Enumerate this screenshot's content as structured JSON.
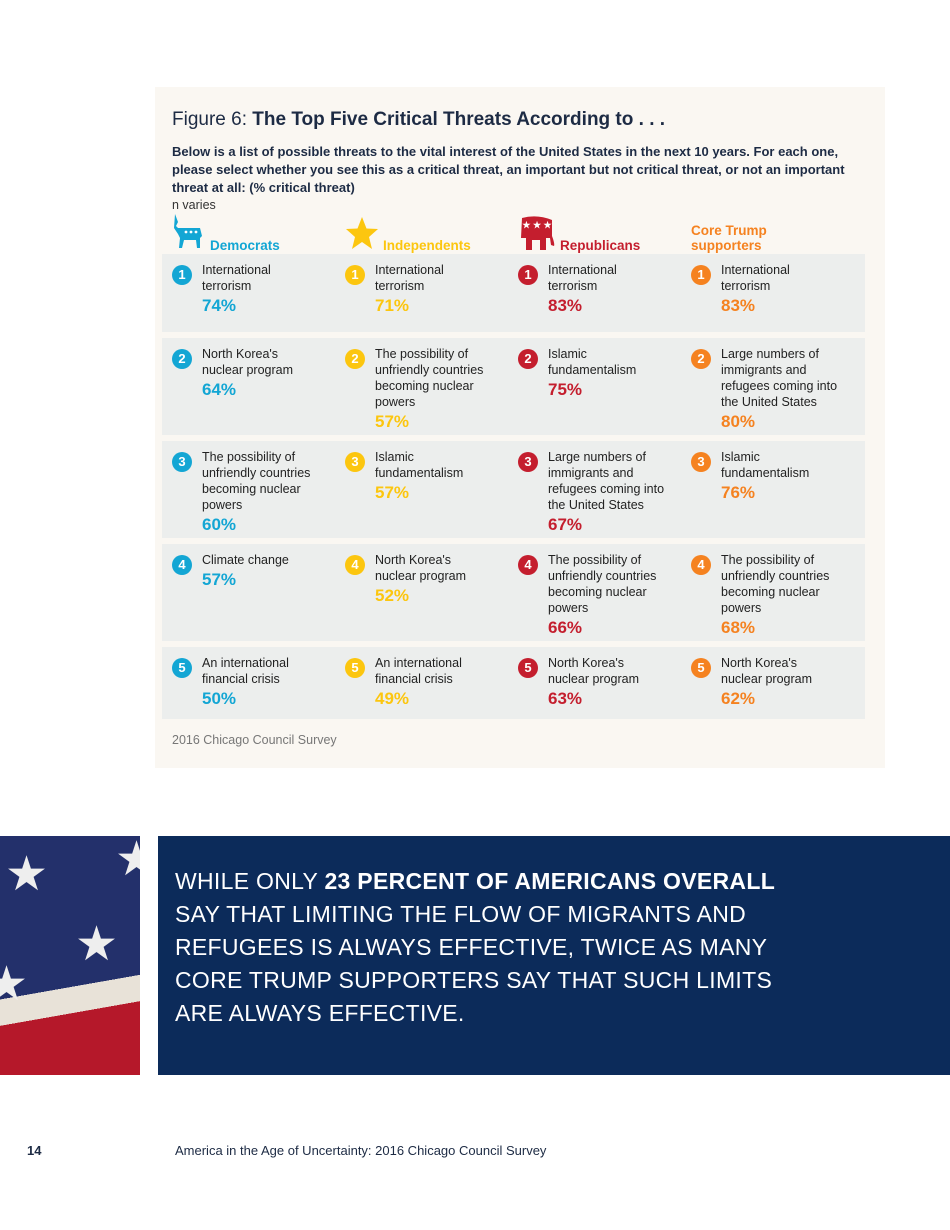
{
  "figure": {
    "title_prefix": "Figure 6: ",
    "title_bold": "The Top Five Critical Threats According to . . .",
    "description": "Below is a list of possible threats to the vital interest of the United States in the next 10 years. For each one, please select whether you see this as a critical threat, an important but not critical threat, or not an important threat at all: (% critical threat)",
    "n_note": "n varies",
    "source": "2016 Chicago Council Survey",
    "columns": [
      {
        "header": "Democrats",
        "icon": "donkey-icon",
        "color": "#13a6d4",
        "items": [
          {
            "rank": "1",
            "label": "International terrorism",
            "pct": "74%"
          },
          {
            "rank": "2",
            "label": "North Korea's nuclear program",
            "pct": "64%"
          },
          {
            "rank": "3",
            "label": "The possibility of unfriendly countries becoming nuclear powers",
            "pct": "60%"
          },
          {
            "rank": "4",
            "label": "Climate change",
            "pct": "57%"
          },
          {
            "rank": "5",
            "label": "An international financial crisis",
            "pct": "50%"
          }
        ]
      },
      {
        "header": "Independents",
        "icon": "star-icon",
        "color": "#fcc60f",
        "items": [
          {
            "rank": "1",
            "label": "International terrorism",
            "pct": "71%"
          },
          {
            "rank": "2",
            "label": "The possibility of unfriendly countries becoming nuclear powers",
            "pct": "57%"
          },
          {
            "rank": "3",
            "label": "Islamic fundamentalism",
            "pct": "57%"
          },
          {
            "rank": "4",
            "label": "North Korea's nuclear program",
            "pct": "52%"
          },
          {
            "rank": "5",
            "label": "An international financial crisis",
            "pct": "49%"
          }
        ]
      },
      {
        "header": "Republicans",
        "icon": "elephant-icon",
        "color": "#c41e2e",
        "items": [
          {
            "rank": "1",
            "label": "International terrorism",
            "pct": "83%"
          },
          {
            "rank": "2",
            "label": "Islamic fundamentalism",
            "pct": "75%"
          },
          {
            "rank": "3",
            "label": "Large numbers of immigrants and refugees coming into the United States",
            "pct": "67%"
          },
          {
            "rank": "4",
            "label": "The possibility of unfriendly countries becoming nuclear powers",
            "pct": "66%"
          },
          {
            "rank": "5",
            "label": "North Korea's nuclear program",
            "pct": "63%"
          }
        ]
      },
      {
        "header": "Core Trump supporters",
        "icon": "",
        "color": "#f58220",
        "items": [
          {
            "rank": "1",
            "label": "International terrorism",
            "pct": "83%"
          },
          {
            "rank": "2",
            "label": "Large numbers of immigrants and refugees coming into the United States",
            "pct": "80%"
          },
          {
            "rank": "3",
            "label": "Islamic fundamentalism",
            "pct": "76%"
          },
          {
            "rank": "4",
            "label": "The possibility of unfriendly countries becoming nuclear powers",
            "pct": "68%"
          },
          {
            "rank": "5",
            "label": "North Korea's nuclear program",
            "pct": "62%"
          }
        ]
      }
    ]
  },
  "banner": {
    "pre": "WHILE ONLY ",
    "bold": "23 PERCENT OF AMERICANS OVERALL",
    "post": " SAY THAT LIMITING THE FLOW OF MIGRANTS AND REFUGEES IS ALWAYS EFFECTIVE, TWICE AS MANY CORE TRUMP SUPPORTERS SAY THAT SUCH LIMITS ARE ALWAYS EFFECTIVE."
  },
  "footer": {
    "page_number": "14",
    "text": "America in the Age of Uncertainty: 2016 Chicago Council Survey"
  }
}
